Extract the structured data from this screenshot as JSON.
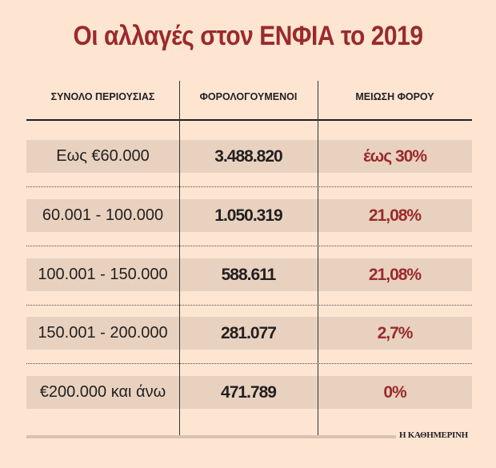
{
  "title": "Οι αλλαγές στον ΕΝΦΙΑ το 2019",
  "source": "Η ΚΑΘΗΜΕΡΙΝΗ",
  "colors": {
    "accent": "#9a2a2c",
    "background": "#fde5d2",
    "row_shade": "#e8d2bf"
  },
  "chart_data": {
    "type": "table",
    "title": "Οι αλλαγές στον ΕΝΦΙΑ το 2019",
    "columns": [
      "ΣΥΝΟΛΟ ΠΕΡΙΟΥΣΙΑΣ",
      "ΦΟΡΟΛΟΓΟΥΜΕΝΟΙ",
      "ΜΕΙΩΣΗ ΦΟΡΟΥ"
    ],
    "rows": [
      {
        "bracket": "Εως €60.000",
        "taxpayers": "3.488.820",
        "reduction": "έως 30%"
      },
      {
        "bracket": "60.001 - 100.000",
        "taxpayers": "1.050.319",
        "reduction": "21,08%"
      },
      {
        "bracket": "100.001 - 150.000",
        "taxpayers": "588.611",
        "reduction": "21,08%"
      },
      {
        "bracket": "150.001 - 200.000",
        "taxpayers": "281.077",
        "reduction": "2,7%"
      },
      {
        "bracket": "€200.000 και άνω",
        "taxpayers": "471.789",
        "reduction": "0%"
      }
    ]
  }
}
